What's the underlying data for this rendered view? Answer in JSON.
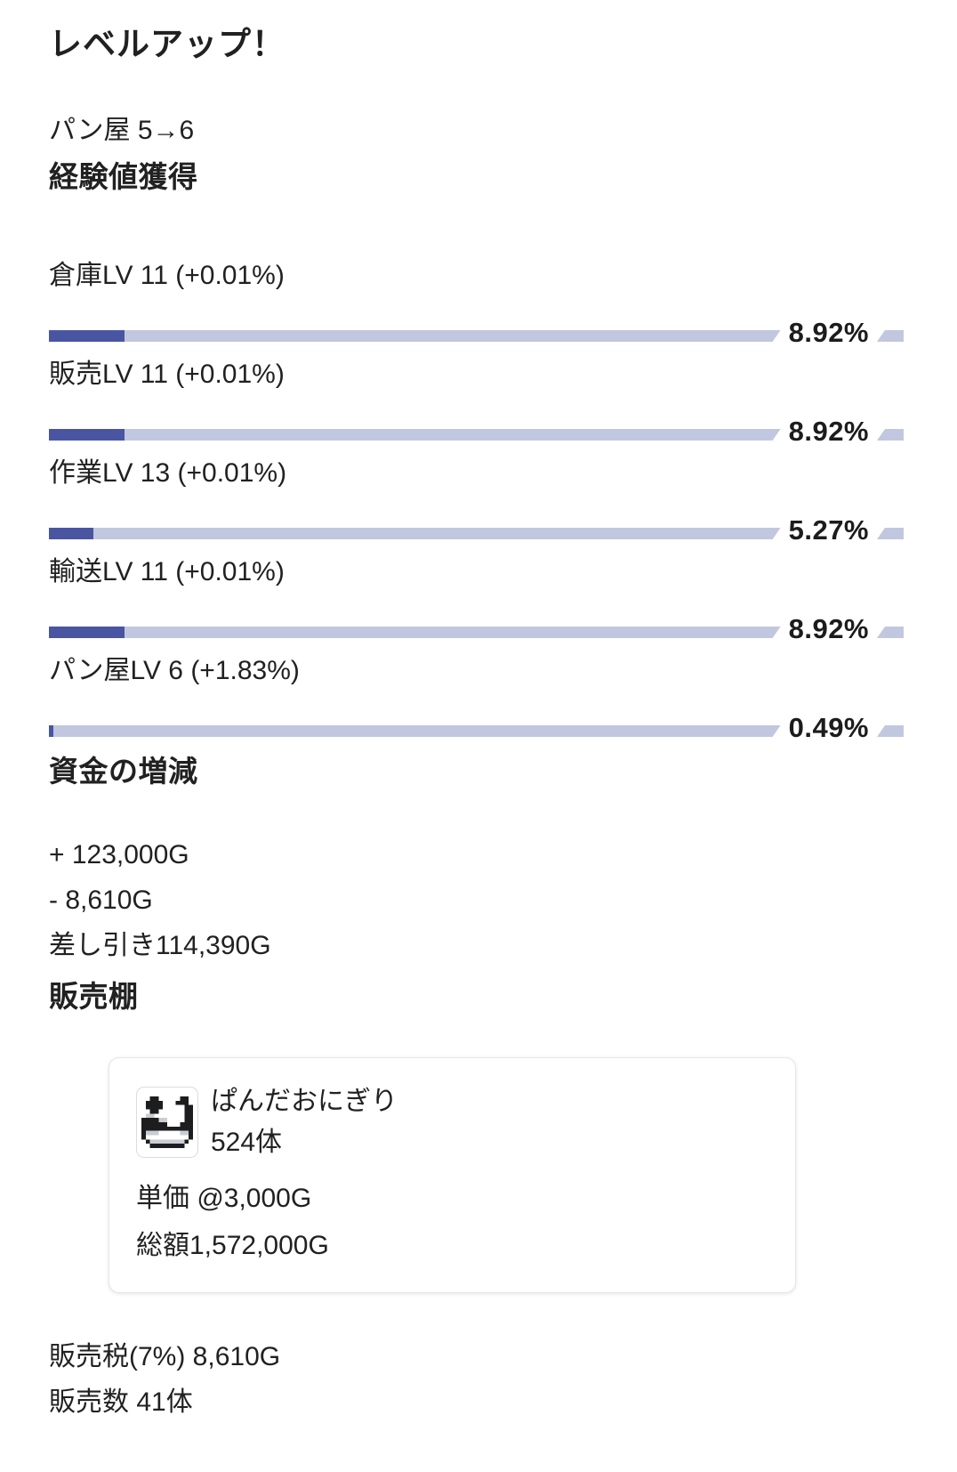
{
  "header": {
    "title": "レベルアップ！",
    "level_change": "パン屋 5→6"
  },
  "exp_section": {
    "heading": "経験値獲得",
    "skills": [
      {
        "label": "倉庫LV 11 (+0.01%)",
        "percent": 8.92,
        "percent_label": "8.92%"
      },
      {
        "label": "販売LV 11 (+0.01%)",
        "percent": 8.92,
        "percent_label": "8.92%"
      },
      {
        "label": "作業LV 13 (+0.01%)",
        "percent": 5.27,
        "percent_label": "5.27%"
      },
      {
        "label": "輸送LV 11 (+0.01%)",
        "percent": 8.92,
        "percent_label": "8.92%"
      },
      {
        "label": "パン屋LV 6 (+1.83%)",
        "percent": 0.49,
        "percent_label": "0.49%"
      }
    ]
  },
  "funds_section": {
    "heading": "資金の増減",
    "gain": "+ 123,000G",
    "loss": "- 8,610G",
    "net": "差し引き114,390G"
  },
  "shelf_section": {
    "heading": "販売棚",
    "item": {
      "icon": "panda-onigiri-icon",
      "name": "ぱんだおにぎり",
      "count": "524体",
      "unit_price": "単価 @3,000G",
      "total": "総額1,572,000G"
    },
    "sales_tax": "販売税(7%) 8,610G",
    "sales_count": "販売数 41体"
  },
  "colors": {
    "bar_fill": "#4a55a2",
    "bar_track": "#c2c7e0",
    "text": "#212121"
  }
}
